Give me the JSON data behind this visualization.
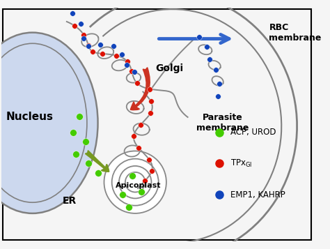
{
  "background_color": "#f5f5f5",
  "nucleus_color": "#ccd8ee",
  "nucleus_edge_color": "#808080",
  "parasite_edge_color": "#808080",
  "green_dot_color": "#44cc00",
  "red_dot_color": "#dd1100",
  "blue_dot_color": "#1144bb",
  "blue_arrow_color": "#3366cc",
  "green_arrow_color": "#779922",
  "red_arrow_color": "#cc3322",
  "tube_color": "#888888",
  "label_nucleus": "Nucleus",
  "label_er": "ER",
  "label_golgi": "Golgi",
  "label_apicoplast": "Apicoplast",
  "label_parasite": "Parasite\nmembrane",
  "label_rbc": "RBC\nmembrane",
  "legend_green": "ACP, UROD",
  "legend_red": "TPx",
  "legend_blue": "EMP1, KAHRP",
  "figsize": [
    4.74,
    3.57
  ],
  "dpi": 100
}
